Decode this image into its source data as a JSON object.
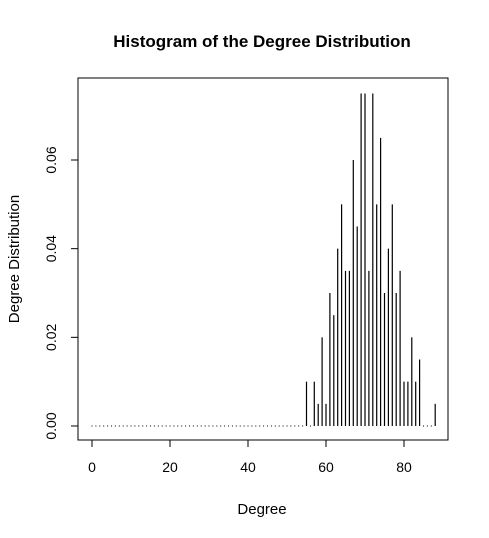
{
  "chart_data": {
    "type": "bar",
    "title": "Histogram of the Degree Distribution",
    "xlabel": "Degree",
    "ylabel": "Degree Distribution",
    "xlim": [
      0,
      88
    ],
    "ylim": [
      0,
      0.075
    ],
    "xticks": [
      "0",
      "20",
      "40",
      "60",
      "80"
    ],
    "yticks": [
      "0.00",
      "0.02",
      "0.04",
      "0.06"
    ],
    "grid": false,
    "legend": "none",
    "x": [
      0,
      1,
      2,
      3,
      4,
      5,
      6,
      7,
      8,
      9,
      10,
      11,
      12,
      13,
      14,
      15,
      16,
      17,
      18,
      19,
      20,
      21,
      22,
      23,
      24,
      25,
      26,
      27,
      28,
      29,
      30,
      31,
      32,
      33,
      34,
      35,
      36,
      37,
      38,
      39,
      40,
      41,
      42,
      43,
      44,
      45,
      46,
      47,
      48,
      49,
      50,
      51,
      52,
      53,
      54,
      55,
      56,
      57,
      58,
      59,
      60,
      61,
      62,
      63,
      64,
      65,
      66,
      67,
      68,
      69,
      70,
      71,
      72,
      73,
      74,
      75,
      76,
      77,
      78,
      79,
      80,
      81,
      82,
      83,
      84,
      85,
      86,
      87,
      88
    ],
    "values": [
      0,
      0,
      0,
      0,
      0,
      0,
      0,
      0,
      0,
      0,
      0,
      0,
      0,
      0,
      0,
      0,
      0,
      0,
      0,
      0,
      0,
      0,
      0,
      0,
      0,
      0,
      0,
      0,
      0,
      0,
      0,
      0,
      0,
      0,
      0,
      0,
      0,
      0,
      0,
      0,
      0,
      0,
      0,
      0,
      0,
      0,
      0,
      0,
      0,
      0,
      0,
      0,
      0,
      0,
      0,
      0.01,
      0,
      0.01,
      0.005,
      0.02,
      0.005,
      0.03,
      0.025,
      0.04,
      0.05,
      0.035,
      0.035,
      0.06,
      0.045,
      0.075,
      0.075,
      0.035,
      0.075,
      0.05,
      0.065,
      0.03,
      0.04,
      0.05,
      0.03,
      0.035,
      0.01,
      0.01,
      0.02,
      0.01,
      0.015,
      0,
      0,
      0,
      0.005
    ],
    "color": "#000000"
  }
}
